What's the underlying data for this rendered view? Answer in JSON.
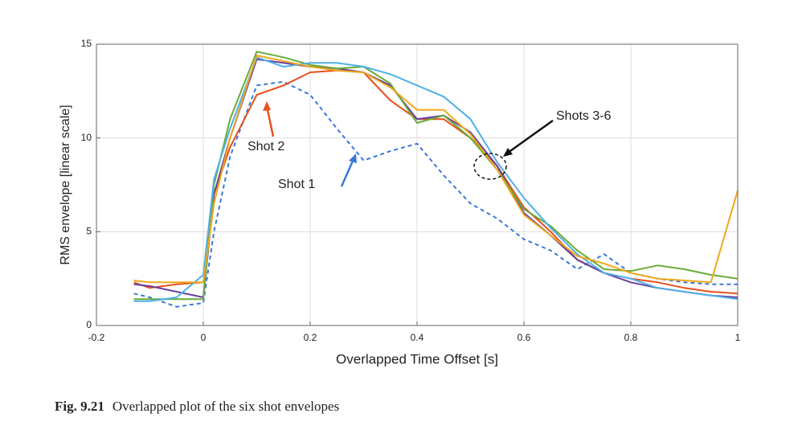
{
  "chart_data": {
    "type": "line",
    "xlabel": "Overlapped Time Offset [s]",
    "ylabel": "RMS envelope [linear scale]",
    "x": [
      -0.13,
      -0.1,
      -0.05,
      0,
      0.02,
      0.05,
      0.1,
      0.15,
      0.2,
      0.25,
      0.3,
      0.35,
      0.4,
      0.45,
      0.5,
      0.55,
      0.6,
      0.65,
      0.7,
      0.75,
      0.8,
      0.85,
      0.9,
      0.95,
      1.0
    ],
    "series": [
      {
        "color": "#3b78d8",
        "line_style": "dashed",
        "values": [
          1.7,
          1.5,
          1.0,
          1.2,
          5,
          9,
          12.8,
          13,
          12.3,
          10.5,
          8.8,
          9.3,
          9.7,
          8,
          6.5,
          5.7,
          4.6,
          4,
          3,
          3.8,
          2.8,
          2.5,
          2.3,
          2.2,
          2.2
        ]
      },
      {
        "color": "#e8501e",
        "line_style": "solid",
        "values": [
          2.3,
          2.0,
          2.2,
          2.3,
          7,
          9.5,
          12.3,
          12.8,
          13.5,
          13.6,
          13.5,
          12,
          11,
          11,
          10,
          8.5,
          6.3,
          5,
          3.5,
          2.8,
          2.5,
          2.3,
          2.0,
          1.8,
          1.7
        ]
      },
      {
        "color": "#6a3fa0",
        "line_style": "solid",
        "values": [
          2.2,
          2.1,
          1.8,
          1.5,
          7,
          10,
          14.2,
          14,
          13.8,
          13.7,
          13.5,
          12.8,
          11,
          11.2,
          10.3,
          8.5,
          6.0,
          4.8,
          3.5,
          2.8,
          2.3,
          2.0,
          1.8,
          1.6,
          1.5
        ]
      },
      {
        "color": "#6aab3a",
        "line_style": "solid",
        "values": [
          1.4,
          1.4,
          1.4,
          1.4,
          7.5,
          11,
          14.6,
          14.3,
          13.9,
          13.7,
          13.8,
          12.9,
          10.8,
          11.2,
          10,
          8.3,
          6.2,
          5.3,
          4.0,
          3.0,
          2.9,
          3.2,
          3.0,
          2.7,
          2.5
        ]
      },
      {
        "color": "#4fb0e8",
        "line_style": "solid",
        "values": [
          1.3,
          1.3,
          1.5,
          2.7,
          7.8,
          10.5,
          14.3,
          13.8,
          14.0,
          14.0,
          13.8,
          13.4,
          12.8,
          12.2,
          11.0,
          8.7,
          6.8,
          5.2,
          3.8,
          2.8,
          2.5,
          2.0,
          1.8,
          1.6,
          1.4
        ]
      },
      {
        "color": "#f0a81c",
        "line_style": "solid",
        "values": [
          2.4,
          2.3,
          2.3,
          2.3,
          6.5,
          10,
          14.4,
          14.1,
          13.8,
          13.6,
          13.5,
          12.7,
          11.5,
          11.5,
          10.2,
          8.3,
          5.9,
          4.8,
          3.7,
          3.3,
          2.8,
          2.5,
          2.4,
          2.3,
          7.2
        ]
      }
    ],
    "annotations": [
      "Shot 2",
      "Shot 1",
      "Shots 3-6"
    ],
    "xlim": [
      -0.2,
      1
    ],
    "xticks": [
      -0.2,
      0,
      0.2,
      0.4,
      0.6,
      0.8,
      1
    ],
    "ylim": [
      0,
      15
    ],
    "yticks": [
      0,
      5,
      10,
      15
    ],
    "grid": true
  },
  "caption": {
    "label": "Fig. 9.21",
    "text": "Overlapped plot of the six shot envelopes"
  }
}
